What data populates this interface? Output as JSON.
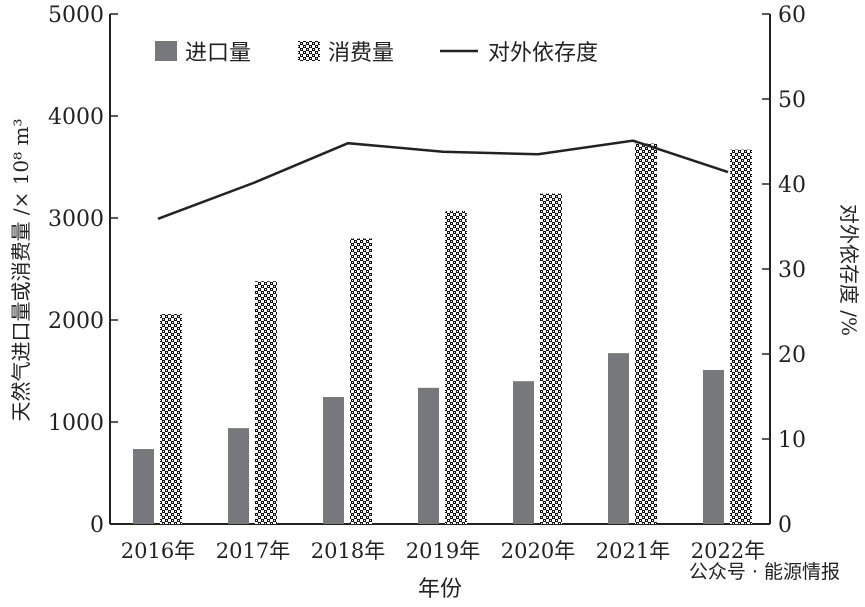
{
  "chart_data": {
    "type": "bar",
    "categories": [
      "2016年",
      "2017年",
      "2018年",
      "2019年",
      "2020年",
      "2021年",
      "2022年"
    ],
    "series": [
      {
        "name": "进口量",
        "kind": "bar",
        "axis": "left",
        "color": "#77787c",
        "values": [
          735,
          940,
          1245,
          1335,
          1400,
          1675,
          1510
        ]
      },
      {
        "name": "消费量",
        "kind": "bar",
        "axis": "left",
        "pattern": "checker",
        "values": [
          2058,
          2380,
          2800,
          3070,
          3240,
          3730,
          3670
        ]
      },
      {
        "name": "对外依存度",
        "kind": "line",
        "axis": "right",
        "color": "#222222",
        "values": [
          35.9,
          40.1,
          44.8,
          43.8,
          43.5,
          45.1,
          41.4
        ]
      }
    ],
    "xlabel": "年份",
    "ylabel": "天然气进口量或消费量 /× 10⁸ m³",
    "y2label": "对外依存度 /%",
    "ylim": [
      0,
      5000
    ],
    "y2lim": [
      0,
      60
    ],
    "yticks": [
      "0",
      "1000",
      "2000",
      "3000",
      "4000",
      "5000"
    ],
    "y2ticks": [
      "0",
      "10",
      "20",
      "30",
      "40",
      "50",
      "60"
    ],
    "legend_position": "top",
    "grid": false
  },
  "watermark": "公众号 · 能源情报"
}
